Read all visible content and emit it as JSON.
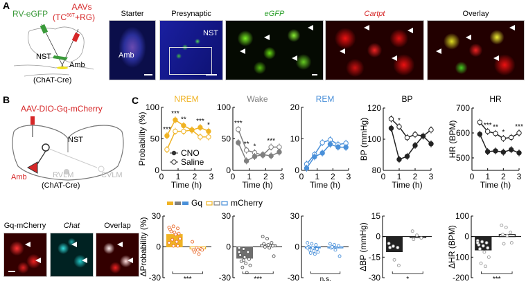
{
  "panels": {
    "A": "A",
    "B": "B",
    "C": "C"
  },
  "panel_a": {
    "virus_left": "RV-eGFP",
    "virus_right_line1": "AAVs",
    "virus_right_line2_pre": "(TC",
    "virus_right_sup": "66T",
    "virus_right_line2_post": "+RG)",
    "region_nst": "NST",
    "region_amb": "Amb",
    "mouse_line": "(ChAT-Cre)",
    "images": [
      {
        "title": "Starter",
        "label": "Amb"
      },
      {
        "title": "Presynaptic",
        "label": "NST"
      },
      {
        "title": "eGFP",
        "color": "#2ca02c"
      },
      {
        "title": "Cartpt",
        "color": "#d62728"
      },
      {
        "title": "Overlay"
      }
    ]
  },
  "panel_b": {
    "virus": "AAV-DIO-Gq-mCherry",
    "regions": {
      "amb": "Amb",
      "nst": "NST",
      "rvlm": "RVLM",
      "cvlm": "CVLM"
    },
    "mouse_line": "(ChAT-Cre)",
    "images": [
      {
        "title": "Gq-mCherry"
      },
      {
        "title": "Chat"
      },
      {
        "title": "Overlap"
      }
    ]
  },
  "panel_c": {
    "legend_top": {
      "cno": "CNO",
      "saline": "Saline"
    },
    "legend_bottom": {
      "gq": "Gq",
      "mcherry": "mCherry"
    },
    "colors": {
      "nrem": "#f0b323",
      "wake": "#7f7f7f",
      "rem": "#4a90d9",
      "bp": "#222222",
      "hr": "#222222",
      "nrem_dots": "#e8692a"
    }
  },
  "chart_data": [
    {
      "type": "line",
      "title": "NREM",
      "color": "#f0b323",
      "xlabel": "Time (h)",
      "ylabel": "Probability (%)",
      "xlim": [
        0,
        3
      ],
      "ylim": [
        0,
        100
      ],
      "xticks": [
        "0",
        "1",
        "2",
        "3"
      ],
      "yticks": [
        "0",
        "50",
        "100"
      ],
      "x": [
        0.33,
        0.83,
        1.33,
        1.83,
        2.33,
        2.83
      ],
      "series": [
        {
          "name": "CNO",
          "filled": true,
          "values": [
            55,
            80,
            71,
            64,
            68,
            62
          ]
        },
        {
          "name": "Saline",
          "filled": false,
          "values": [
            33,
            62,
            62,
            64,
            53,
            53
          ]
        }
      ],
      "annotations": [
        {
          "x": 0.33,
          "text": "***"
        },
        {
          "x": 0.83,
          "text": "***"
        },
        {
          "x": 1.33,
          "text": "**"
        },
        {
          "x": 2.33,
          "text": "***"
        },
        {
          "x": 2.83,
          "text": "*"
        }
      ]
    },
    {
      "type": "line",
      "title": "Wake",
      "color": "#7f7f7f",
      "xlabel": "Time (h)",
      "ylabel": "",
      "xlim": [
        0,
        3
      ],
      "ylim": [
        0,
        100
      ],
      "xticks": [
        "0",
        "1",
        "2",
        "3"
      ],
      "yticks": [
        "0",
        "50",
        "100"
      ],
      "x": [
        0.33,
        0.83,
        1.33,
        1.83,
        2.33,
        2.83
      ],
      "series": [
        {
          "name": "CNO",
          "filled": true,
          "values": [
            44,
            15,
            22,
            25,
            23,
            29
          ]
        },
        {
          "name": "Saline",
          "filled": false,
          "values": [
            65,
            32,
            28,
            24,
            37,
            37
          ]
        }
      ],
      "annotations": [
        {
          "x": 0.33,
          "text": "***"
        },
        {
          "x": 0.83,
          "text": "**"
        },
        {
          "x": 1.33,
          "text": "*"
        },
        {
          "x": 2.33,
          "text": "***"
        }
      ]
    },
    {
      "type": "line",
      "title": "REM",
      "color": "#4a90d9",
      "xlabel": "Time (h)",
      "ylabel": "",
      "xlim": [
        0,
        3
      ],
      "ylim": [
        0,
        20
      ],
      "xticks": [
        "0",
        "1",
        "2",
        "3"
      ],
      "yticks": [
        "0",
        "10",
        "20"
      ],
      "x": [
        0.33,
        0.83,
        1.33,
        1.83,
        2.33,
        2.83
      ],
      "series": [
        {
          "name": "CNO",
          "filled": true,
          "values": [
            0.7,
            4.3,
            5.5,
            8.3,
            7.4,
            7.3
          ]
        },
        {
          "name": "Saline",
          "filled": false,
          "values": [
            2,
            5,
            8.8,
            9.7,
            8.2,
            8.6
          ]
        }
      ],
      "annotations": []
    },
    {
      "type": "line",
      "title": "BP",
      "color": "#222222",
      "xlabel": "Time (h)",
      "ylabel": "BP (mmHg)",
      "xlim": [
        0,
        3
      ],
      "ylim": [
        80,
        120
      ],
      "xticks": [
        "0",
        "1",
        "2",
        "3"
      ],
      "yticks": [
        "80",
        "100",
        "120"
      ],
      "x": [
        0.5,
        1,
        1.5,
        2,
        2.5,
        3
      ],
      "series": [
        {
          "name": "CNO",
          "filled": true,
          "values": [
            107,
            87,
            89,
            96,
            102,
            97
          ]
        },
        {
          "name": "Saline",
          "filled": false,
          "values": [
            113,
            108,
            101,
            103,
            102,
            106
          ]
        }
      ],
      "annotations": [
        {
          "x": 1,
          "text": "*"
        }
      ]
    },
    {
      "type": "line",
      "title": "HR",
      "color": "#222222",
      "xlabel": "Time (h)",
      "ylabel": "HR (BPM)",
      "xlim": [
        0,
        3
      ],
      "ylim": [
        450,
        700
      ],
      "xticks": [
        "0",
        "1",
        "2",
        "3"
      ],
      "yticks": [
        "500",
        "600",
        "700"
      ],
      "x": [
        0.5,
        1,
        1.5,
        2,
        2.5,
        3
      ],
      "series": [
        {
          "name": "CNO",
          "filled": true,
          "values": [
            595,
            525,
            528,
            523,
            533,
            520
          ]
        },
        {
          "name": "Saline",
          "filled": false,
          "values": [
            643,
            606,
            598,
            578,
            582,
            600
          ]
        }
      ],
      "annotations": [
        {
          "x": 1,
          "text": "***"
        },
        {
          "x": 1.5,
          "text": "**"
        },
        {
          "x": 2,
          "text": "*"
        },
        {
          "x": 3,
          "text": "***"
        }
      ]
    },
    {
      "type": "bar",
      "color": "#f0b323",
      "dot_color": "#e8692a",
      "ylabel": "ΔProbability (%)",
      "ylim": [
        -30,
        30
      ],
      "yticks": [
        "-30",
        "0",
        "30"
      ],
      "categories": [
        "Gq",
        "mCherry"
      ],
      "values": [
        12,
        -2
      ],
      "points": [
        [
          19,
          20,
          18,
          17,
          14,
          13,
          15,
          12,
          8,
          7,
          5,
          4,
          1,
          1
        ],
        [
          5,
          -1,
          -2,
          -3,
          -3,
          -3,
          -5,
          -7
        ]
      ],
      "significance": "***"
    },
    {
      "type": "bar",
      "color": "#6e6e6e",
      "dot_color": "#555555",
      "ylabel": "",
      "ylim": [
        -30,
        30
      ],
      "yticks": [
        "-30",
        "0",
        "30"
      ],
      "categories": [
        "Gq",
        "mCherry"
      ],
      "values": [
        -11,
        2
      ],
      "points": [
        [
          -1,
          -2,
          -5,
          -8,
          -10,
          -12,
          -14,
          -16,
          -18,
          -20,
          -25,
          -5,
          -13
        ],
        [
          10,
          8,
          4,
          3,
          2,
          1,
          0,
          -1,
          -9
        ]
      ],
      "significance": "***"
    },
    {
      "type": "bar",
      "color": "#4a90d9",
      "dot_color": "#4a90d9",
      "ylabel": "",
      "ylim": [
        -30,
        30
      ],
      "yticks": [
        "-30",
        "0",
        "30"
      ],
      "categories": [
        "Gq",
        "mCherry"
      ],
      "values": [
        -1,
        -1
      ],
      "points": [
        [
          4,
          3,
          2,
          0,
          -1,
          -2,
          -3,
          -4,
          -5,
          -6,
          -7,
          -1
        ],
        [
          3,
          2,
          1,
          -1,
          -3,
          -9,
          0
        ]
      ],
      "significance": "n.s."
    },
    {
      "type": "bar",
      "color": "#222222",
      "dot_color": "#999999",
      "ylabel": "ΔBP (mmHg)",
      "ylim": [
        -30,
        15
      ],
      "yticks": [
        "-30",
        "-15",
        "0",
        "15"
      ],
      "categories": [
        "Gq",
        "mCherry"
      ],
      "values": [
        -11,
        0
      ],
      "points": [
        [
          -5,
          -7,
          -8,
          -8,
          -17,
          -21
        ],
        [
          4,
          1,
          -1,
          -2
        ]
      ],
      "significance": "*"
    },
    {
      "type": "bar",
      "color": "#222222",
      "dot_color": "#999999",
      "ylabel": "ΔHR (BPM)",
      "ylim": [
        -200,
        100
      ],
      "yticks": [
        "-200",
        "-100",
        "0",
        "100"
      ],
      "categories": [
        "Gq",
        "mCherry"
      ],
      "values": [
        -65,
        10
      ],
      "points": [
        [
          -20,
          -25,
          -30,
          -40,
          -45,
          -55,
          -60,
          -75,
          -100,
          -130,
          -145,
          -30
        ],
        [
          55,
          45,
          20,
          10,
          5,
          -30,
          -35
        ]
      ],
      "significance": "***"
    }
  ]
}
